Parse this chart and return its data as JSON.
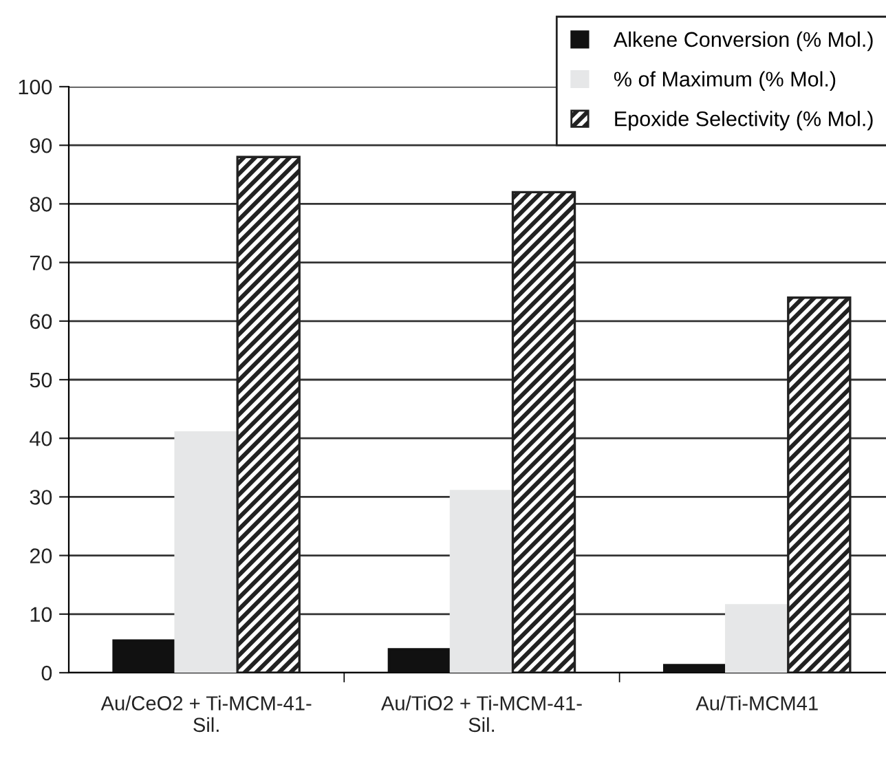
{
  "chart_data": {
    "type": "bar",
    "categories": [
      "Au/CeO2 + Ti-MCM-41-Sil.",
      "Au/TiO2 + Ti-MCM-41-Sil.",
      "Au/Ti-MCM41"
    ],
    "series": [
      {
        "name": "Alkene Conversion (% Mol.)",
        "color": "#111111",
        "values": [
          5.5,
          4,
          1.3
        ]
      },
      {
        "name": "% of Maximum (% Mol.)",
        "color": "#e6e7e8",
        "values": [
          41,
          31,
          11.5
        ]
      },
      {
        "name": "Epoxide Selectivity (% Mol.)",
        "color": "#222222",
        "values": [
          88,
          82,
          64
        ]
      }
    ],
    "ylim": [
      0,
      100
    ],
    "yticks": [
      0,
      10,
      20,
      30,
      40,
      50,
      60,
      70,
      80,
      90,
      100
    ],
    "grid": "y",
    "legend": "top right"
  }
}
